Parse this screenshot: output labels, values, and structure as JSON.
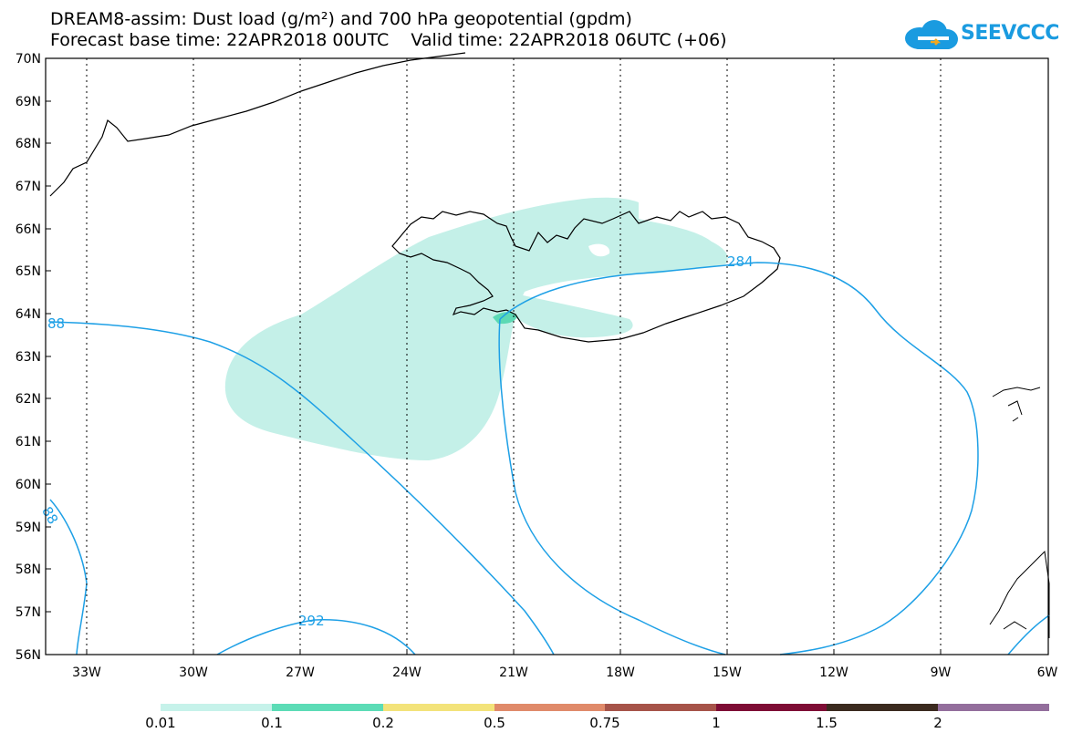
{
  "header": {
    "title_line1": "DREAM8-assim: Dust load (g/m²) and 700 hPa geopotential (gpdm)",
    "title_line2": "Forecast base time: 22APR2018 00UTC    Valid time: 22APR2018 06UTC (+06)"
  },
  "logo": {
    "text": "SEEVCCC",
    "icon": "cloud-icon",
    "color": "#1a9be0"
  },
  "map": {
    "lat_labels": [
      "70N",
      "69N",
      "68N",
      "67N",
      "66N",
      "65N",
      "64N",
      "63N",
      "62N",
      "61N",
      "60N",
      "59N",
      "58N",
      "57N",
      "56N"
    ],
    "lon_labels": [
      "33W",
      "30W",
      "27W",
      "24W",
      "21W",
      "18W",
      "15W",
      "12W",
      "9W",
      "6W"
    ],
    "contour_labels": [
      "88",
      "88",
      "292",
      "284"
    ],
    "contour_color": "#1ea0e6",
    "dust_color_light": "#c4f0e8",
    "dust_color_mid": "#5cd9b4"
  },
  "colorbar": {
    "colors": [
      "#c6f2ea",
      "#5cdcb6",
      "#f3e37a",
      "#e08a6a",
      "#a65349",
      "#7e0d35",
      "#3b2a1f",
      "#936e9c"
    ],
    "labels": [
      "0.01",
      "0.1",
      "0.2",
      "0.5",
      "0.75",
      "1",
      "1.5",
      "2"
    ]
  }
}
